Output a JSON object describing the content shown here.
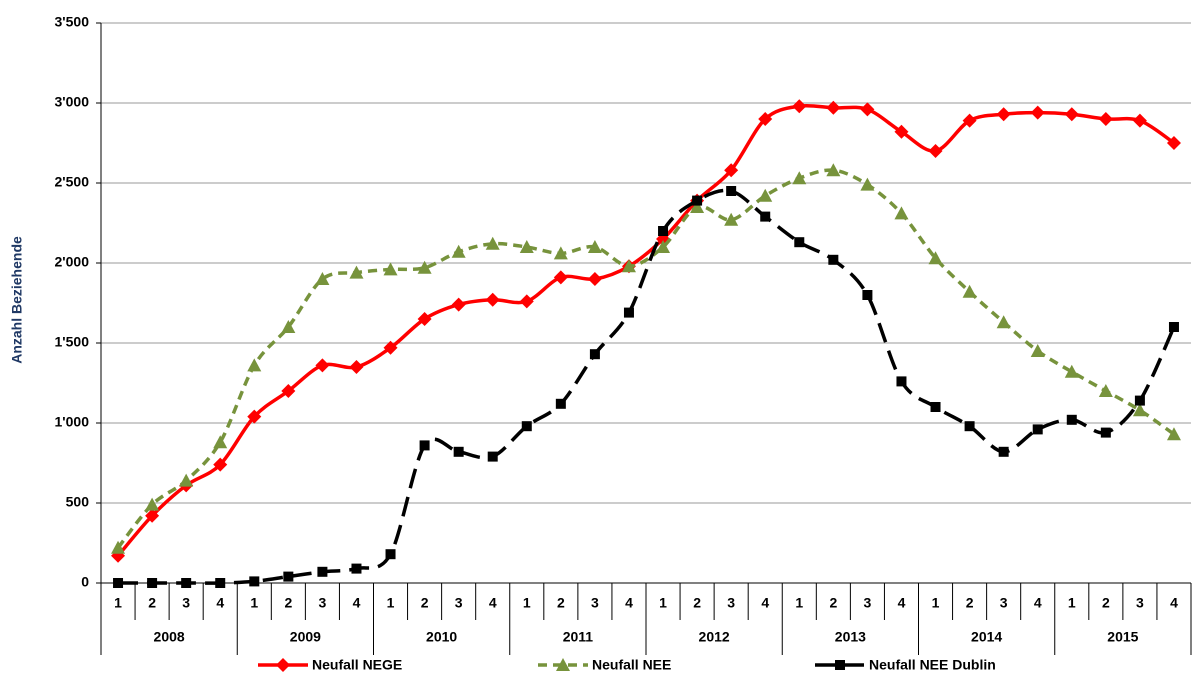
{
  "chart_data": {
    "type": "line",
    "ylabel": "Anzahl Beziehende",
    "categories": [
      "1",
      "2",
      "3",
      "4",
      "1",
      "2",
      "3",
      "4",
      "1",
      "2",
      "3",
      "4",
      "1",
      "2",
      "3",
      "4",
      "1",
      "2",
      "3",
      "4",
      "1",
      "2",
      "3",
      "4",
      "1",
      "2",
      "3",
      "4",
      "1",
      "2",
      "3",
      "4"
    ],
    "years": [
      "2008",
      "2009",
      "2010",
      "2011",
      "2012",
      "2013",
      "2014",
      "2015"
    ],
    "ylim": [
      0,
      3500
    ],
    "yticks": [
      0,
      500,
      {
        "value": 1000,
        "label": "1'000"
      },
      {
        "value": 1500,
        "label": "1'500"
      },
      {
        "value": 2000,
        "label": "2'000"
      },
      {
        "value": 2500,
        "label": "2'500"
      },
      {
        "value": 3000,
        "label": "3'000"
      },
      {
        "value": 3500,
        "label": "3'500"
      }
    ],
    "grid": true,
    "legend": "bottom",
    "series": [
      {
        "name": "Neufall NEGE",
        "color": "#ff0000",
        "marker": "diamond",
        "dash": "solid",
        "values": [
          170,
          420,
          610,
          740,
          1040,
          1200,
          1360,
          1350,
          1470,
          1650,
          1740,
          1770,
          1760,
          1910,
          1900,
          1980,
          2150,
          2390,
          2580,
          2900,
          2980,
          2970,
          2960,
          2820,
          2700,
          2890,
          2930,
          2940,
          2930,
          2900,
          2890,
          2750
        ]
      },
      {
        "name": "Neufall NEE",
        "color": "#77933c",
        "marker": "triangle",
        "dash": "dashed",
        "values": [
          220,
          490,
          640,
          880,
          1360,
          1600,
          1900,
          1940,
          1960,
          1970,
          2070,
          2120,
          2100,
          2060,
          2100,
          1980,
          2100,
          2350,
          2270,
          2420,
          2530,
          2580,
          2490,
          2310,
          2030,
          1820,
          1630,
          1450,
          1320,
          1200,
          1080,
          930
        ]
      },
      {
        "name": "Neufall NEE Dublin",
        "color": "#000000",
        "marker": "square",
        "dash": "longdash",
        "values": [
          0,
          0,
          0,
          0,
          10,
          40,
          70,
          90,
          180,
          860,
          820,
          790,
          980,
          1120,
          1430,
          1690,
          2200,
          2390,
          2450,
          2290,
          2130,
          2020,
          1800,
          1260,
          1100,
          980,
          820,
          960,
          1020,
          940,
          1140,
          1600
        ]
      }
    ]
  }
}
